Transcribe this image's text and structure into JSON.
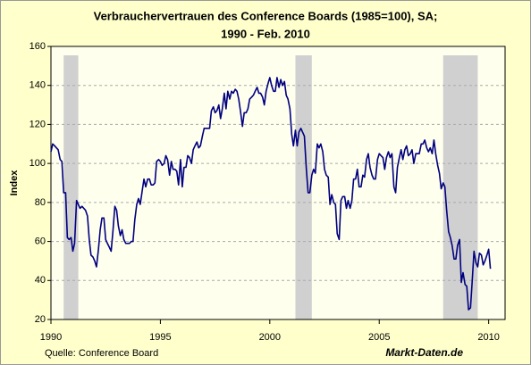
{
  "chart_data": {
    "type": "line",
    "title": "Verbrauchervertrauen des Conference Boards (1985=100), SA;",
    "subtitle": "1990 -  Feb. 2010",
    "y_label": "Index",
    "source": "Quelle: Conference Board",
    "brand": "Markt-Daten.de",
    "xlim": [
      1990,
      2010.75
    ],
    "xticks": [
      1990,
      1995,
      2000,
      2005,
      2010
    ],
    "ylim": [
      20,
      160
    ],
    "yticks": [
      20,
      40,
      60,
      80,
      100,
      120,
      140,
      160
    ],
    "grid": true,
    "shaded": [
      [
        1990.58,
        1991.25
      ],
      [
        2001.17,
        2001.92
      ],
      [
        2007.92,
        2009.5
      ]
    ],
    "shade_color": "#d0d0d0",
    "x": [
      1990,
      1990.08,
      1990.17,
      1990.25,
      1990.33,
      1990.42,
      1990.5,
      1990.58,
      1990.67,
      1990.75,
      1990.83,
      1990.92,
      1991,
      1991.08,
      1991.17,
      1991.25,
      1991.33,
      1991.42,
      1991.5,
      1991.58,
      1991.67,
      1991.75,
      1991.83,
      1991.92,
      1992,
      1992.08,
      1992.17,
      1992.25,
      1992.33,
      1992.42,
      1992.5,
      1992.58,
      1992.67,
      1992.75,
      1992.83,
      1992.92,
      1993,
      1993.08,
      1993.17,
      1993.25,
      1993.33,
      1993.42,
      1993.5,
      1993.58,
      1993.67,
      1993.75,
      1993.83,
      1993.92,
      1994,
      1994.08,
      1994.17,
      1994.25,
      1994.33,
      1994.42,
      1994.5,
      1994.58,
      1994.67,
      1994.75,
      1994.83,
      1994.92,
      1995,
      1995.08,
      1995.17,
      1995.25,
      1995.33,
      1995.42,
      1995.5,
      1995.58,
      1995.67,
      1995.75,
      1995.83,
      1995.92,
      1996,
      1996.08,
      1996.17,
      1996.25,
      1996.33,
      1996.42,
      1996.5,
      1996.58,
      1996.67,
      1996.75,
      1996.83,
      1996.92,
      1997,
      1997.08,
      1997.17,
      1997.25,
      1997.33,
      1997.42,
      1997.5,
      1997.58,
      1997.67,
      1997.75,
      1997.83,
      1997.92,
      1998,
      1998.08,
      1998.17,
      1998.25,
      1998.33,
      1998.42,
      1998.5,
      1998.58,
      1998.67,
      1998.75,
      1998.83,
      1998.92,
      1999,
      1999.08,
      1999.17,
      1999.25,
      1999.33,
      1999.42,
      1999.5,
      1999.58,
      1999.67,
      1999.75,
      1999.83,
      1999.92,
      2000,
      2000.08,
      2000.17,
      2000.25,
      2000.33,
      2000.42,
      2000.5,
      2000.58,
      2000.67,
      2000.75,
      2000.83,
      2000.92,
      2001,
      2001.08,
      2001.17,
      2001.25,
      2001.33,
      2001.42,
      2001.5,
      2001.58,
      2001.67,
      2001.75,
      2001.83,
      2001.92,
      2002,
      2002.08,
      2002.17,
      2002.25,
      2002.33,
      2002.42,
      2002.5,
      2002.58,
      2002.67,
      2002.75,
      2002.83,
      2002.92,
      2003,
      2003.08,
      2003.17,
      2003.25,
      2003.33,
      2003.42,
      2003.5,
      2003.58,
      2003.67,
      2003.75,
      2003.83,
      2003.92,
      2004,
      2004.08,
      2004.17,
      2004.25,
      2004.33,
      2004.42,
      2004.5,
      2004.58,
      2004.67,
      2004.75,
      2004.83,
      2004.92,
      2005,
      2005.08,
      2005.17,
      2005.25,
      2005.33,
      2005.42,
      2005.5,
      2005.58,
      2005.67,
      2005.75,
      2005.83,
      2005.92,
      2006,
      2006.08,
      2006.17,
      2006.25,
      2006.33,
      2006.42,
      2006.5,
      2006.58,
      2006.67,
      2006.75,
      2006.83,
      2006.92,
      2007,
      2007.08,
      2007.17,
      2007.25,
      2007.33,
      2007.42,
      2007.5,
      2007.58,
      2007.67,
      2007.75,
      2007.83,
      2007.92,
      2008,
      2008.08,
      2008.17,
      2008.25,
      2008.33,
      2008.42,
      2008.5,
      2008.58,
      2008.67,
      2008.75,
      2008.83,
      2008.92,
      2009,
      2009.08,
      2009.17,
      2009.25,
      2009.33,
      2009.42,
      2009.5,
      2009.58,
      2009.67,
      2009.75,
      2009.83,
      2009.92,
      2010,
      2010.08
    ],
    "series": [
      {
        "color": "#000080",
        "values": [
          106,
          110,
          109,
          108,
          107,
          102,
          101,
          85,
          85,
          62,
          61,
          62,
          55,
          59,
          81,
          79,
          77,
          78,
          77,
          76,
          73,
          61,
          53,
          52,
          50,
          47,
          56,
          66,
          72,
          72,
          61,
          59,
          57,
          55,
          65,
          78,
          76,
          68,
          63,
          66,
          61,
          59,
          59,
          59,
          60,
          60,
          71,
          79,
          82,
          79,
          86,
          92,
          88,
          92,
          92,
          89,
          89,
          90,
          101,
          102,
          101,
          99,
          100,
          104,
          102,
          94,
          101,
          97,
          97,
          96,
          89,
          102,
          88,
          98,
          98,
          104,
          103,
          100,
          107,
          109,
          111,
          108,
          109,
          114,
          118,
          118,
          118,
          118,
          127,
          129,
          126,
          127,
          130,
          123,
          128,
          136,
          128,
          137,
          133,
          137,
          136,
          138,
          137,
          133,
          126,
          119,
          126,
          126,
          128,
          133,
          134,
          135,
          137,
          139,
          136,
          136,
          134,
          130,
          137,
          141,
          144,
          140,
          137,
          137,
          144,
          139,
          143,
          140,
          142,
          135,
          133,
          128,
          115,
          109,
          117,
          109,
          116,
          118,
          116,
          114,
          97,
          85,
          85,
          94,
          97,
          95,
          110,
          108,
          110,
          106,
          97,
          94,
          93,
          79,
          84,
          80,
          79,
          64,
          61,
          81,
          83,
          83,
          77,
          81,
          77,
          81,
          92,
          92,
          97,
          88,
          88,
          94,
          93,
          102,
          105,
          98,
          94,
          92,
          92,
          102,
          105,
          104,
          103,
          97,
          103,
          106,
          103,
          105,
          88,
          85,
          98,
          103,
          107,
          102,
          107,
          109,
          104,
          105,
          107,
          100,
          105,
          105,
          105,
          110,
          110,
          112,
          108,
          106,
          108,
          105,
          112,
          105,
          99,
          95,
          87,
          90,
          88,
          76,
          65,
          62,
          58,
          51,
          51,
          58,
          61,
          39,
          44,
          38,
          37,
          25,
          26,
          40,
          55,
          49,
          47,
          54,
          53,
          48,
          50,
          53,
          56,
          46
        ]
      }
    ]
  }
}
